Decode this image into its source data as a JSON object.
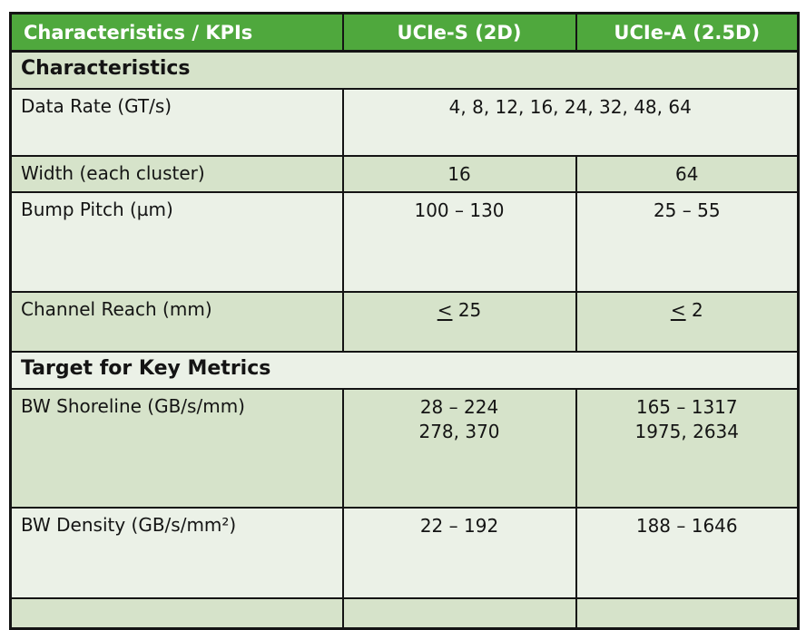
{
  "table": {
    "header": {
      "kpi": "Characteristics / KPIs",
      "ucie_s": "UCIe-S (2D)",
      "ucie_a": "UCIe-A (2.5D)"
    },
    "sections": {
      "characteristics": "Characteristics",
      "target": "Target for Key Metrics"
    },
    "rows": {
      "data_rate": {
        "label": "Data Rate (GT/s)",
        "value": "4, 8, 12, 16, 24, 32, 48, 64"
      },
      "width": {
        "label": "Width (each cluster)",
        "ucie_s": "16",
        "ucie_a": "64"
      },
      "bump_pitch": {
        "label": "Bump Pitch (µm)",
        "ucie_s": "100 – 130",
        "ucie_a": "25 – 55"
      },
      "channel_reach": {
        "label": "Channel Reach (mm)",
        "ucie_s_sym": "<",
        "ucie_s_val": "25",
        "ucie_a_sym": "<",
        "ucie_a_val": "2"
      },
      "bw_shoreline": {
        "label": "BW Shoreline (GB/s/mm)",
        "ucie_s_line1": "28 – 224",
        "ucie_s_line2": "278, 370",
        "ucie_a_line1": "165 – 1317",
        "ucie_a_line2": "1975, 2634"
      },
      "bw_density": {
        "label": "BW Density (GB/s/mm²)",
        "ucie_s": "22 – 192",
        "ucie_a": "188 – 1646"
      }
    },
    "colors": {
      "header_bg": "#4fa83d",
      "header_text": "#ffffff",
      "row_dark": "#d6e3ca",
      "row_light": "#ebf1e7",
      "border": "#141414",
      "text": "#141414"
    }
  }
}
